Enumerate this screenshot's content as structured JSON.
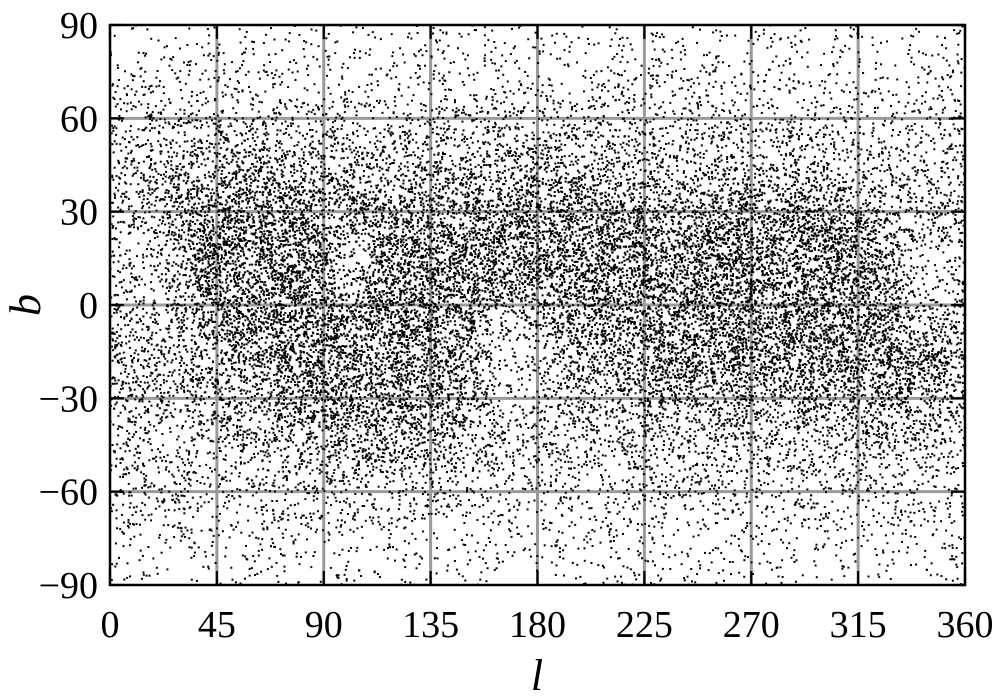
{
  "chart_data": {
    "type": "scatter",
    "title": "",
    "xlabel": "l",
    "ylabel": "b",
    "xlim": [
      0,
      360
    ],
    "ylim": [
      -90,
      90
    ],
    "xticks": [
      0,
      45,
      90,
      135,
      180,
      225,
      270,
      315,
      360
    ],
    "yticks": [
      -90,
      -60,
      -30,
      0,
      30,
      60,
      90
    ],
    "xtick_labels": [
      "0",
      "45",
      "90",
      "135",
      "180",
      "225",
      "270",
      "315",
      "360"
    ],
    "ytick_labels": [
      "−90",
      "−60",
      "−30",
      "0",
      "30",
      "60",
      "90"
    ],
    "grid": true,
    "legend": "none",
    "colors": {
      "points": "#000000",
      "grid": "#9a9a9a"
    },
    "dense_regions": [
      {
        "l": 75,
        "b": 8
      },
      {
        "l": 95,
        "b": -12
      },
      {
        "l": 120,
        "b": -22
      },
      {
        "l": 145,
        "b": 18
      },
      {
        "l": 200,
        "b": 22
      },
      {
        "l": 240,
        "b": -8
      },
      {
        "l": 270,
        "b": 12
      },
      {
        "l": 290,
        "b": 8
      },
      {
        "l": 325,
        "b": -12
      },
      {
        "l": 60,
        "b": 25
      }
    ],
    "sparse_regions": [
      {
        "l": 15,
        "b": 5
      },
      {
        "l": 170,
        "b": -18
      },
      {
        "l": 345,
        "b": 8
      },
      {
        "l": 100,
        "b": 12
      }
    ]
  }
}
